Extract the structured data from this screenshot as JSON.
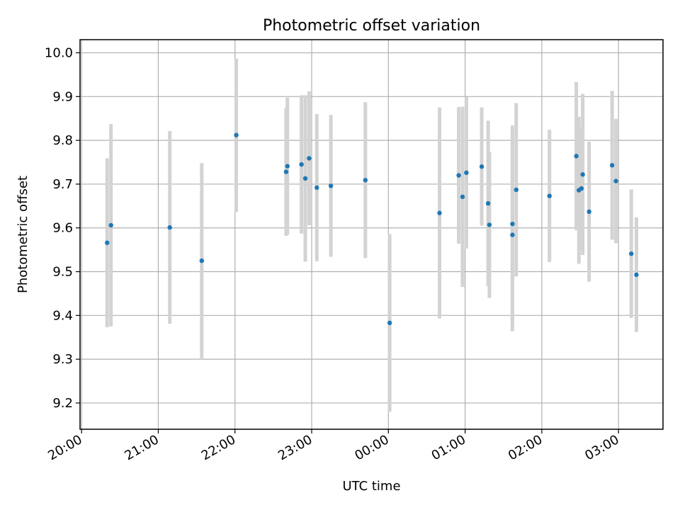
{
  "chart_data": {
    "type": "scatter",
    "title": "Photometric offset variation",
    "xlabel": "UTC time",
    "ylabel": "Photometric offset",
    "x_ticks": [
      "20:00",
      "21:00",
      "22:00",
      "23:00",
      "00:00",
      "01:00",
      "02:00",
      "03:00"
    ],
    "x_tick_hours": [
      0,
      1,
      2,
      3,
      4,
      5,
      6,
      7
    ],
    "x_axis_note_hours_since": "20:00",
    "xlim_hours": [
      -0.02,
      7.58
    ],
    "y_ticks": [
      "9.2",
      "9.3",
      "9.4",
      "9.5",
      "9.6",
      "9.7",
      "9.8",
      "9.9",
      "10.0"
    ],
    "ylim": [
      9.14,
      10.03
    ],
    "grid": true,
    "marker_color": "#1f77b4",
    "errorbar_color": "#d3d3d3",
    "points": [
      {
        "t": "20:20",
        "y": 9.566,
        "err": 0.193
      },
      {
        "t": "20:23",
        "y": 9.606,
        "err": 0.231
      },
      {
        "t": "21:09",
        "y": 9.601,
        "err": 0.22
      },
      {
        "t": "21:34",
        "y": 9.525,
        "err": 0.223
      },
      {
        "t": "22:01",
        "y": 9.812,
        "err": 0.175
      },
      {
        "t": "22:40",
        "y": 9.728,
        "err": 0.146
      },
      {
        "t": "22:41",
        "y": 9.741,
        "err": 0.157
      },
      {
        "t": "22:52",
        "y": 9.745,
        "err": 0.158
      },
      {
        "t": "22:55",
        "y": 9.713,
        "err": 0.19
      },
      {
        "t": "22:58",
        "y": 9.759,
        "err": 0.153
      },
      {
        "t": "23:04",
        "y": 9.692,
        "err": 0.168
      },
      {
        "t": "23:15",
        "y": 9.696,
        "err": 0.162
      },
      {
        "t": "23:42",
        "y": 9.709,
        "err": 0.178
      },
      {
        "t": "00:01",
        "y": 9.383,
        "err": 0.203
      },
      {
        "t": "00:40",
        "y": 9.634,
        "err": 0.241
      },
      {
        "t": "00:55",
        "y": 9.72,
        "err": 0.156
      },
      {
        "t": "00:58",
        "y": 9.671,
        "err": 0.206
      },
      {
        "t": "01:01",
        "y": 9.726,
        "err": 0.173
      },
      {
        "t": "01:13",
        "y": 9.74,
        "err": 0.135
      },
      {
        "t": "01:18",
        "y": 9.656,
        "err": 0.189
      },
      {
        "t": "01:19",
        "y": 9.607,
        "err": 0.167
      },
      {
        "t": "01:37",
        "y": 9.609,
        "err": 0.225
      },
      {
        "t": "01:37",
        "y": 9.584,
        "err": 0.22
      },
      {
        "t": "01:40",
        "y": 9.687,
        "err": 0.198
      },
      {
        "t": "02:06",
        "y": 9.673,
        "err": 0.151
      },
      {
        "t": "02:27",
        "y": 9.764,
        "err": 0.169
      },
      {
        "t": "02:29",
        "y": 9.686,
        "err": 0.168
      },
      {
        "t": "02:31",
        "y": 9.69,
        "err": 0.14
      },
      {
        "t": "02:32",
        "y": 9.722,
        "err": 0.184
      },
      {
        "t": "02:37",
        "y": 9.637,
        "err": 0.16
      },
      {
        "t": "02:55",
        "y": 9.743,
        "err": 0.17
      },
      {
        "t": "02:58",
        "y": 9.707,
        "err": 0.142
      },
      {
        "t": "03:10",
        "y": 9.541,
        "err": 0.147
      },
      {
        "t": "03:14",
        "y": 9.493,
        "err": 0.131
      }
    ]
  }
}
